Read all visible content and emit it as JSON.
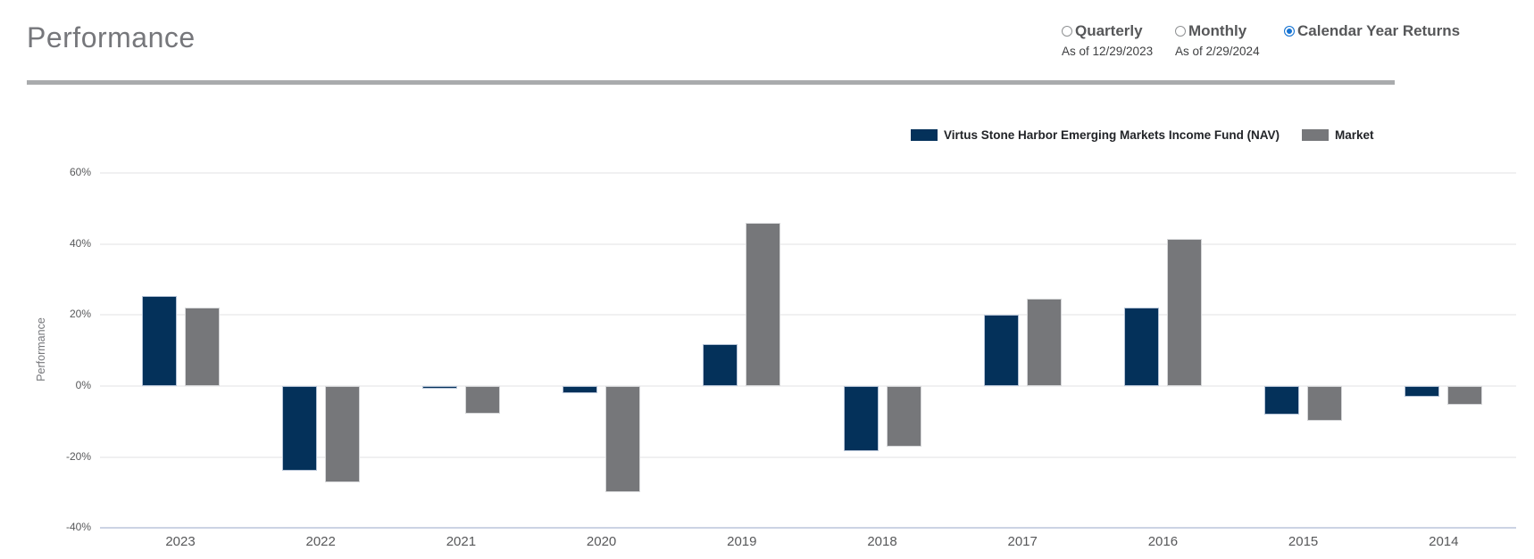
{
  "header": {
    "title": "Performance"
  },
  "view_options": [
    {
      "label": "Quarterly",
      "sub": "As of 12/29/2023",
      "selected": false
    },
    {
      "label": "Monthly",
      "sub": "As of 2/29/2024",
      "selected": false
    },
    {
      "label": "Calendar Year Returns",
      "sub": "",
      "selected": true
    }
  ],
  "colors": {
    "radio_selected": "#1673d2",
    "nav_series": "#04315a",
    "market_series": "#76777a",
    "divider": "#a9abad",
    "baseline": "#ccd3e4"
  },
  "chart_data": {
    "type": "bar",
    "title": "",
    "xlabel": "",
    "ylabel": "Performance",
    "ylim": [
      -40,
      67
    ],
    "yticks": [
      60,
      40,
      20,
      0,
      -20,
      -40
    ],
    "ytick_labels": [
      "60%",
      "40%",
      "20%",
      "0%",
      "-20%",
      "-40%"
    ],
    "grid": true,
    "legend_position": "top-right",
    "categories": [
      "2023",
      "2022",
      "2021",
      "2020",
      "2019",
      "2018",
      "2017",
      "2016",
      "2015",
      "2014"
    ],
    "series": [
      {
        "name": "Virtus Stone Harbor Emerging Markets Income Fund (NAV)",
        "color": "#04315a",
        "values": [
          25.4,
          -23.9,
          -0.7,
          -2.0,
          11.9,
          -18.3,
          20.0,
          22.0,
          -8.1,
          -3.1
        ]
      },
      {
        "name": "Market",
        "color": "#76777a",
        "values": [
          22.1,
          -27.1,
          -7.9,
          -30.0,
          46.0,
          -17.1,
          24.5,
          41.5,
          -9.8,
          -5.2
        ]
      }
    ]
  }
}
